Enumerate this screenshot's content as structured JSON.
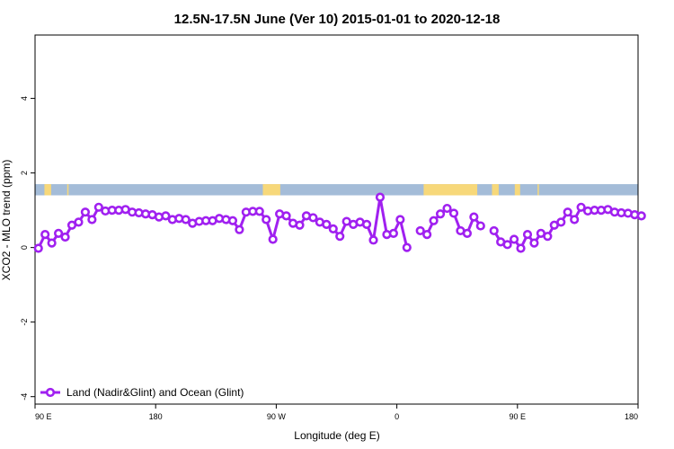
{
  "chart_data": {
    "type": "line",
    "title": "12.5N-17.5N June (Ver 10)   2015-01-01 to 2020-12-18",
    "xlabel": "Longitude (deg E)",
    "ylabel": "XCO2 - MLO trend (ppm)",
    "xlim": [
      90,
      450
    ],
    "ylim": [
      -4.2,
      5.7
    ],
    "x_ticks": [
      {
        "value": 90,
        "label": "90 E"
      },
      {
        "value": 180,
        "label": "180"
      },
      {
        "value": 270,
        "label": "90 W"
      },
      {
        "value": 360,
        "label": "0"
      },
      {
        "value": 450,
        "label": "90 E"
      },
      {
        "value": 540,
        "label": "180"
      }
    ],
    "y_ticks": [
      {
        "value": -4,
        "label": "-4"
      },
      {
        "value": -2,
        "label": "-2"
      },
      {
        "value": 0,
        "label": "0"
      },
      {
        "value": 2,
        "label": "2"
      },
      {
        "value": 4,
        "label": "4"
      }
    ],
    "legend": {
      "position": "bottom-left"
    },
    "colors": {
      "series": "#a020f0",
      "ocean": "#a4bcd8",
      "land": "#f7d87a"
    },
    "land_strip": {
      "y_range": [
        1.4,
        1.7
      ],
      "land_segments": [
        [
          97,
          102
        ],
        [
          114,
          115
        ],
        [
          260,
          273
        ],
        [
          380,
          420
        ],
        [
          431,
          436
        ],
        [
          448,
          452
        ],
        [
          465,
          466
        ]
      ]
    },
    "series": [
      {
        "name": "Land (Nadir&Glint) and Ocean (Glint)",
        "segments": [
          {
            "x": [
              92.5,
              97.5,
              102.5,
              107.5,
              112.5,
              117.5,
              122.5,
              127.5,
              132.5,
              137.5,
              142.5,
              147.5,
              152.5,
              157.5,
              162.5,
              167.5,
              172.5,
              177.5,
              182.5,
              187.5,
              192.5,
              197.5,
              202.5,
              207.5,
              212.5,
              217.5,
              222.5,
              227.5,
              232.5,
              237.5,
              242.5,
              247.5,
              252.5,
              257.5,
              262.5,
              267.5,
              272.5,
              277.5,
              282.5,
              287.5,
              292.5,
              297.5,
              302.5,
              307.5,
              312.5,
              317.5,
              322.5,
              327.5,
              332.5,
              337.5,
              342.5,
              347.5,
              352.5,
              357.5,
              362.5,
              367.5,
              372.5
            ],
            "y": [
              -0.02,
              0.35,
              0.12,
              0.38,
              0.28,
              0.6,
              0.68,
              0.95,
              0.75,
              1.08,
              0.98,
              1.0,
              1.0,
              1.02,
              0.95,
              0.93,
              0.9,
              0.88,
              0.82,
              0.85,
              0.75,
              0.78,
              0.75,
              0.65,
              0.7,
              0.72,
              0.72,
              0.78,
              0.75,
              0.72,
              0.48,
              0.95,
              0.97,
              0.97,
              0.75,
              0.22,
              0.9,
              0.85,
              0.65,
              0.6,
              0.85,
              0.8,
              0.68,
              0.62,
              0.5,
              0.3,
              0.7,
              0.62,
              0.68,
              0.62,
              0.2,
              1.35,
              0.35,
              0.38,
              0.75,
              0.0,
              null
            ]
          },
          {
            "x": [
              377.5,
              382.5,
              387.5,
              392.5,
              397.5,
              402.5,
              407.5,
              412.5,
              417.5,
              422.5
            ],
            "y": [
              0.45,
              0.35,
              0.72,
              0.9,
              1.05,
              0.92,
              0.45,
              0.38,
              0.82,
              0.58
            ]
          },
          {
            "x": [
              432.5,
              437.5,
              442.5,
              447.5,
              452.5,
              457.5,
              462.5,
              467.5,
              472.5,
              477.5,
              482.5,
              487.5,
              492.5,
              497.5,
              502.5,
              507.5,
              512.5,
              517.5,
              522.5,
              527.5,
              532.5,
              537.5,
              542.5
            ],
            "y": [
              0.45,
              0.15,
              0.08,
              0.22,
              -0.02,
              0.35,
              0.12,
              0.38,
              0.3,
              0.6,
              0.68,
              0.95,
              0.75,
              1.08,
              0.98,
              1.0,
              1.0,
              1.02,
              0.95,
              0.93,
              0.92,
              0.88,
              0.85
            ]
          }
        ]
      }
    ]
  }
}
